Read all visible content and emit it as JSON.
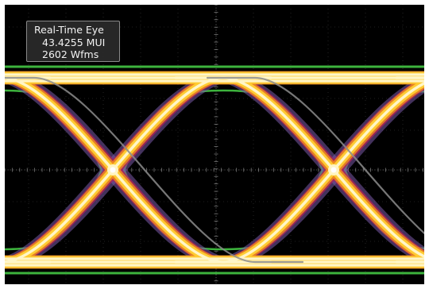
{
  "readout": {
    "title": "Real-Time Eye",
    "unit_intervals": "43.4255 MUI",
    "waveforms": "2602 Wfms"
  },
  "display": {
    "background": "#000000",
    "graticule_color": "#5a5a5a",
    "mask_color": "#3db33d",
    "trace_hot": "#fff6c8",
    "trace_warm": "#ffcc33",
    "trace_mid": "#f08a1e",
    "trace_cool": "#b0205a",
    "trace_rare": "#7a5aa8"
  }
}
